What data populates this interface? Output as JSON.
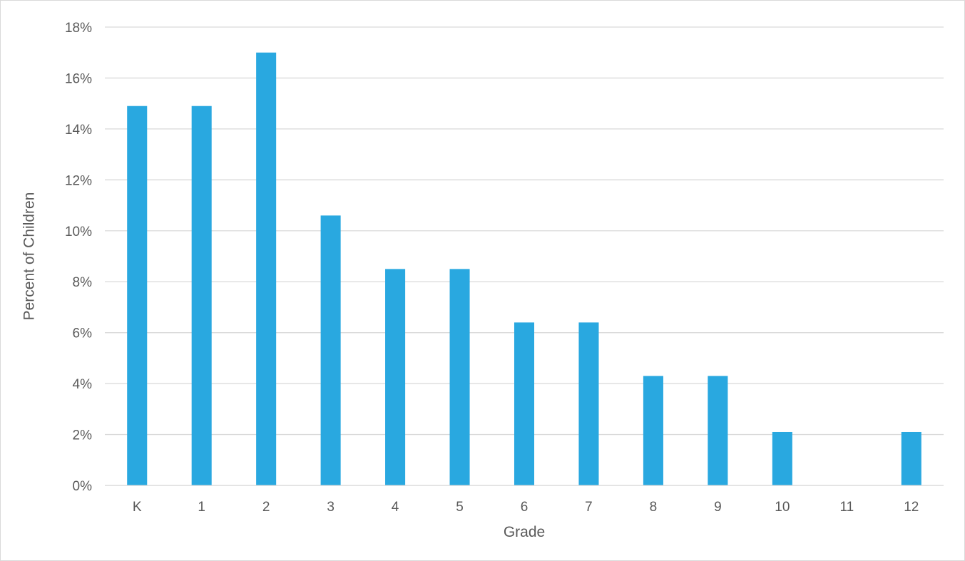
{
  "chart_data": {
    "type": "bar",
    "title": "",
    "xlabel": "Grade",
    "ylabel": "Percent of Children",
    "categories": [
      "K",
      "1",
      "2",
      "3",
      "4",
      "5",
      "6",
      "7",
      "8",
      "9",
      "10",
      "11",
      "12"
    ],
    "values": [
      14.9,
      14.9,
      17.0,
      10.6,
      8.5,
      8.5,
      6.4,
      6.4,
      4.3,
      4.3,
      2.1,
      0,
      2.1
    ],
    "ylim": [
      0,
      18
    ],
    "yticks": [
      0,
      2,
      4,
      6,
      8,
      10,
      12,
      14,
      16,
      18
    ],
    "ytick_format": "percent",
    "grid": true,
    "legend": "none",
    "bar_color": "#29a8e0"
  }
}
